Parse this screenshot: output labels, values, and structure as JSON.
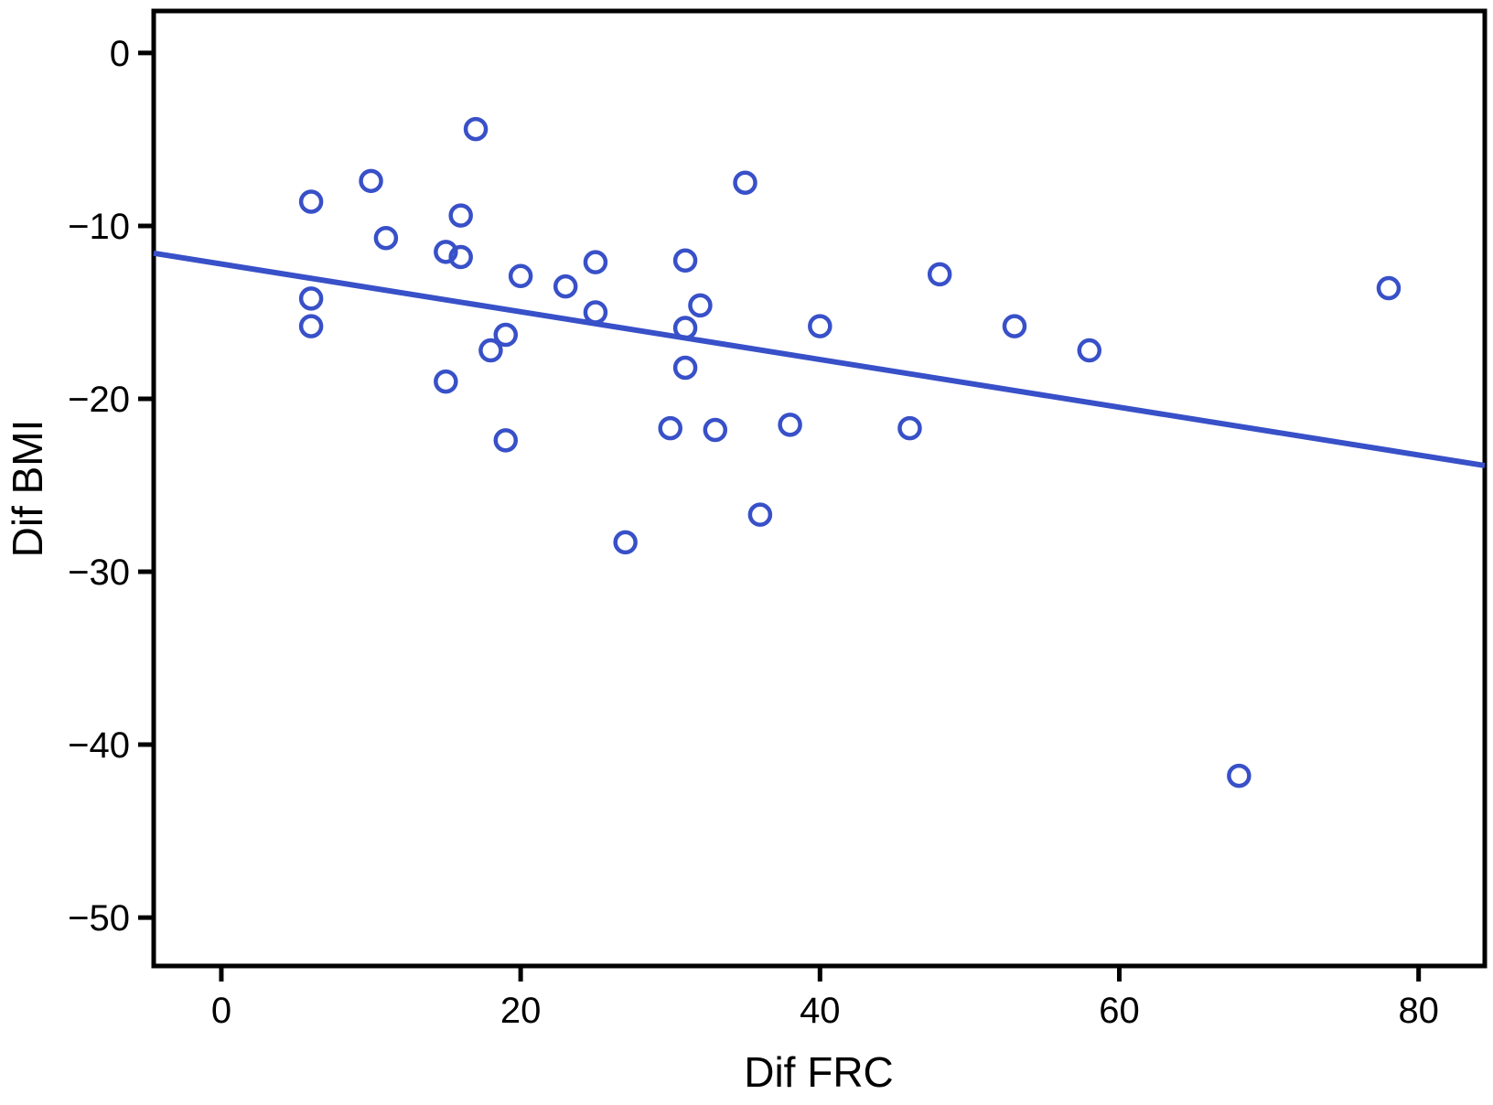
{
  "figure": {
    "background": "#ffffff",
    "axis_color": "#000000",
    "accent_color": "#3850c8"
  },
  "chart_data": {
    "type": "scatter",
    "title": "",
    "xlabel": "Dif FRC",
    "ylabel": "Dif BMI",
    "xlim": [
      -4.52,
      84.42
    ],
    "ylim": [
      -52.8,
      2.43
    ],
    "x_ticks": [
      0,
      20,
      40,
      60,
      80
    ],
    "y_ticks": [
      0,
      -10,
      -20,
      -30,
      -40,
      -50
    ],
    "grid": false,
    "legend": "none",
    "marker": {
      "shape": "open-circle",
      "color": "#3850c8",
      "radius": 11,
      "stroke_width": 4.5
    },
    "points": [
      [
        17,
        -4.4
      ],
      [
        35,
        -7.5
      ],
      [
        10,
        -7.4
      ],
      [
        6,
        -8.6
      ],
      [
        16,
        -9.4
      ],
      [
        11,
        -10.7
      ],
      [
        15,
        -11.5
      ],
      [
        16,
        -11.8
      ],
      [
        25,
        -12.1
      ],
      [
        31,
        -12.0
      ],
      [
        20,
        -12.9
      ],
      [
        23,
        -13.5
      ],
      [
        48,
        -12.8
      ],
      [
        6,
        -14.2
      ],
      [
        25,
        -15.0
      ],
      [
        32,
        -14.6
      ],
      [
        6,
        -15.8
      ],
      [
        19,
        -16.3
      ],
      [
        18,
        -17.2
      ],
      [
        31,
        -15.9
      ],
      [
        40,
        -15.8
      ],
      [
        53,
        -15.8
      ],
      [
        58,
        -17.2
      ],
      [
        78,
        -13.6
      ],
      [
        15,
        -19.0
      ],
      [
        31,
        -18.2
      ],
      [
        19,
        -22.4
      ],
      [
        30,
        -21.7
      ],
      [
        33,
        -21.8
      ],
      [
        38,
        -21.5
      ],
      [
        46,
        -21.7
      ],
      [
        36,
        -26.7
      ],
      [
        27,
        -28.3
      ],
      [
        68,
        -41.8
      ]
    ],
    "trendline": {
      "x1": -4.52,
      "y1": -11.58,
      "x2": 84.42,
      "y2": -23.86,
      "color": "#3850c8",
      "stroke_width": 6
    }
  }
}
